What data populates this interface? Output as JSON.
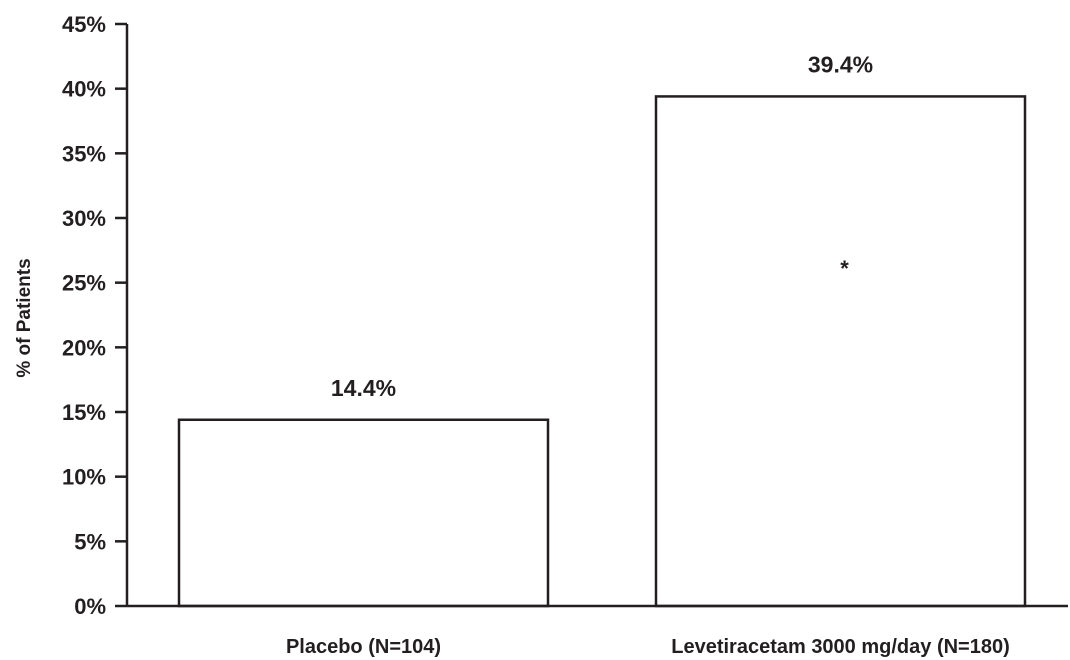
{
  "chart_data": {
    "type": "bar",
    "title": "",
    "xlabel": "",
    "ylabel": "% of Patients",
    "categories": [
      "Placebo (N=104)",
      "Levetiracetam 3000 mg/day (N=180)"
    ],
    "values": [
      14.4,
      39.4
    ],
    "data_labels": [
      "14.4%",
      "39.4%"
    ],
    "ylim": [
      0,
      45
    ],
    "y_ticks": [
      0,
      5,
      10,
      15,
      20,
      25,
      30,
      35,
      40,
      45
    ],
    "y_tick_labels": [
      "0%",
      "5%",
      "10%",
      "15%",
      "20%",
      "25%",
      "30%",
      "35%",
      "40%",
      "45%"
    ],
    "annotations": [
      {
        "category_index": 1,
        "text": "*"
      }
    ],
    "grid": false,
    "legend": "none",
    "colors": {
      "bar_fill": "#ffffff",
      "bar_stroke": "#231f20",
      "axis": "#231f20",
      "text": "#231f20"
    }
  }
}
